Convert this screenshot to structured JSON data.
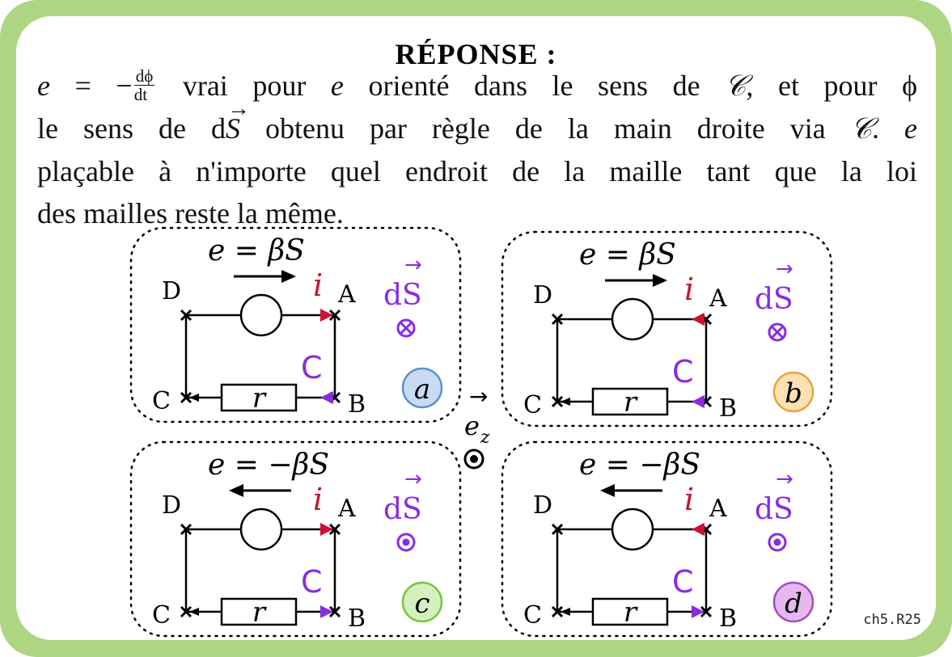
{
  "title": "RÉPONSE :",
  "explanation": {
    "line1": {
      "e": "e",
      "eq_minus": "= −",
      "frac_num": "dϕ",
      "frac_den": "dt",
      "t1": "vrai pour",
      "e2": "e",
      "t2": "orienté dans le sens de",
      "curve": "𝒞",
      "t3": ", et pour ϕ"
    },
    "line2": {
      "t1": "le sens de d",
      "vec_S": "S",
      "t2": "obtenu par règle de la main droite via",
      "curve": "𝒞",
      "t3": ".",
      "e": "e"
    },
    "line3": "plaçable à n'importe quel endroit de la maille tant que la loi",
    "line4": "des mailles reste la même."
  },
  "circuits": [
    {
      "id": "a",
      "emf_label": "e  =  βS",
      "emf_arrow": "right",
      "current": "i",
      "dS": "dS",
      "dS_symbol": "⊗",
      "contour": "C",
      "resistor": "r",
      "badge": "a",
      "badge_color": "#c7dcf2",
      "badge_border": "#5b8fd0",
      "nodes": [
        "D",
        "A",
        "C",
        "B"
      ],
      "current_color": "#cc1133",
      "contour_color": "#8a2be2"
    },
    {
      "id": "b",
      "emf_label": "e  =  βS",
      "emf_arrow": "right",
      "current": "i",
      "dS": "dS",
      "dS_symbol": "⊗",
      "contour": "C",
      "resistor": "r",
      "badge": "b",
      "badge_color": "#fde0b3",
      "badge_border": "#e8a33a",
      "nodes": [
        "D",
        "A",
        "C",
        "B"
      ],
      "current_color": "#cc1133",
      "contour_color": "#8a2be2"
    },
    {
      "id": "c",
      "emf_label": "e  =  −βS",
      "emf_arrow": "left",
      "current": "i",
      "dS": "dS",
      "dS_symbol": "⊙",
      "contour": "C",
      "resistor": "r",
      "badge": "c",
      "badge_color": "#d4f0c0",
      "badge_border": "#6fc93a",
      "nodes": [
        "D",
        "A",
        "C",
        "B"
      ],
      "current_color": "#cc1133",
      "contour_color": "#8a2be2"
    },
    {
      "id": "d",
      "emf_label": "e  =  −βS",
      "emf_arrow": "left",
      "current": "i",
      "dS": "dS",
      "dS_symbol": "⊙",
      "contour": "C",
      "resistor": "r",
      "badge": "d",
      "badge_color": "#e6b8ee",
      "badge_border": "#a64ac0",
      "nodes": [
        "D",
        "A",
        "C",
        "B"
      ],
      "current_color": "#cc1133",
      "contour_color": "#8a2be2"
    }
  ],
  "axis_label": {
    "base": "e",
    "sub": "z",
    "arrow": "→",
    "symbol": "⊙"
  },
  "footer_code": "ch5.R25",
  "colors": {
    "frame": "#aed581",
    "purple": "#8a2be2",
    "red": "#cc1133"
  }
}
